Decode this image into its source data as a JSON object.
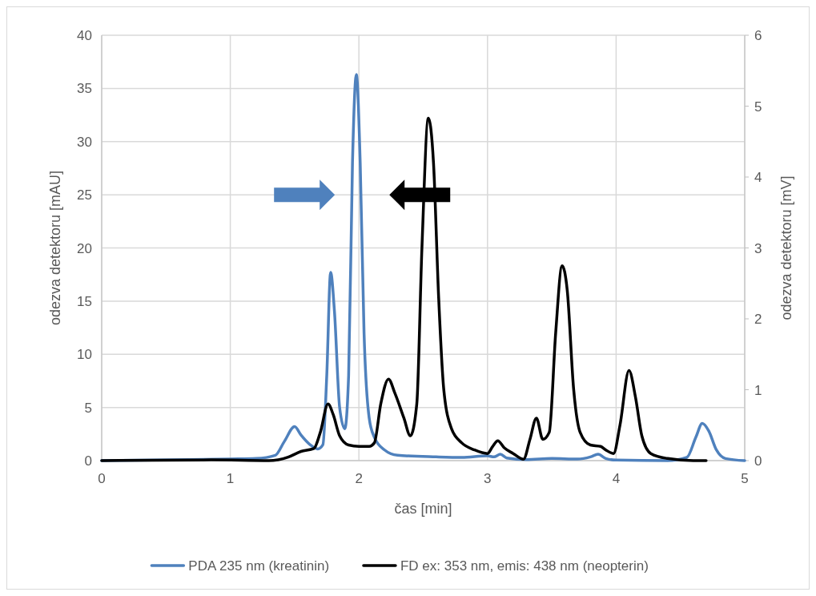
{
  "chart_data": {
    "type": "line",
    "xlabel": "čas [min]",
    "ylabel": "odezva detektoru [mAU]",
    "y2label": "odezva detektoru [mV]",
    "xlim": [
      0,
      5
    ],
    "xticks": [
      0,
      1,
      2,
      3,
      4,
      5
    ],
    "ylim": [
      0,
      40
    ],
    "yticks": [
      0,
      5,
      10,
      15,
      20,
      25,
      30,
      35,
      40
    ],
    "y2lim": [
      0,
      6
    ],
    "y2ticks": [
      0,
      1,
      2,
      3,
      4,
      5,
      6
    ],
    "grid": true,
    "legend": "bottom",
    "marker": "none",
    "line_style": "solid",
    "series": [
      {
        "name": "PDA 235 nm (kreatinin)",
        "color": "#4f81bd",
        "x": [
          0,
          1,
          1.2,
          1.35,
          1.42,
          1.5,
          1.55,
          1.62,
          1.68,
          1.72,
          1.75,
          1.78,
          1.81,
          1.85,
          1.89,
          1.92,
          1.95,
          1.98,
          2.01,
          2.04,
          2.08,
          2.12,
          2.2,
          2.3,
          2.6,
          2.8,
          3.0,
          3.05,
          3.1,
          3.15,
          3.3,
          3.5,
          3.7,
          3.8,
          3.86,
          3.92,
          4.0,
          4.4,
          4.55,
          4.62,
          4.67,
          4.72,
          4.78,
          4.85,
          5
        ],
        "values": [
          0,
          0.15,
          0.2,
          0.5,
          1.8,
          3.2,
          2.4,
          1.5,
          1.1,
          1.5,
          8,
          17.7,
          14,
          5,
          3.0,
          8,
          28,
          36.3,
          28,
          12,
          4,
          2.2,
          1.0,
          0.5,
          0.35,
          0.3,
          0.45,
          0.35,
          0.6,
          0.25,
          0.1,
          0.2,
          0.15,
          0.35,
          0.6,
          0.2,
          0.05,
          0,
          0.3,
          2.2,
          3.5,
          2.8,
          1.0,
          0.2,
          0
        ]
      },
      {
        "name": "FD ex: 353 nm, emis: 438 nm (neopterin)",
        "color": "#000000",
        "axis": "y2",
        "x": [
          0,
          0.85,
          1.3,
          1.45,
          1.55,
          1.65,
          1.7,
          1.76,
          1.8,
          1.85,
          1.92,
          2.0,
          2.08,
          2.12,
          2.17,
          2.23,
          2.28,
          2.35,
          2.4,
          2.45,
          2.49,
          2.54,
          2.58,
          2.62,
          2.66,
          2.72,
          2.8,
          2.9,
          3.0,
          3.04,
          3.08,
          3.13,
          3.2,
          3.28,
          3.33,
          3.38,
          3.43,
          3.48,
          3.53,
          3.58,
          3.62,
          3.67,
          3.72,
          3.8,
          3.88,
          3.92,
          3.98,
          4.03,
          4.1,
          4.15,
          4.2,
          4.27,
          4.4,
          4.6,
          4.7
        ],
        "values": [
          0,
          0.01,
          0,
          0.05,
          0.13,
          0.17,
          0.4,
          0.8,
          0.65,
          0.35,
          0.22,
          0.2,
          0.2,
          0.25,
          0.8,
          1.15,
          0.95,
          0.6,
          0.35,
          0.8,
          3.0,
          4.83,
          4.2,
          2.3,
          1.0,
          0.45,
          0.25,
          0.15,
          0.1,
          0.2,
          0.28,
          0.18,
          0.1,
          0.02,
          0.3,
          0.6,
          0.3,
          0.4,
          1.8,
          2.75,
          2.4,
          1.0,
          0.4,
          0.22,
          0.2,
          0.15,
          0.1,
          0.5,
          1.27,
          0.9,
          0.35,
          0.1,
          0.03,
          0,
          0
        ]
      }
    ]
  }
}
